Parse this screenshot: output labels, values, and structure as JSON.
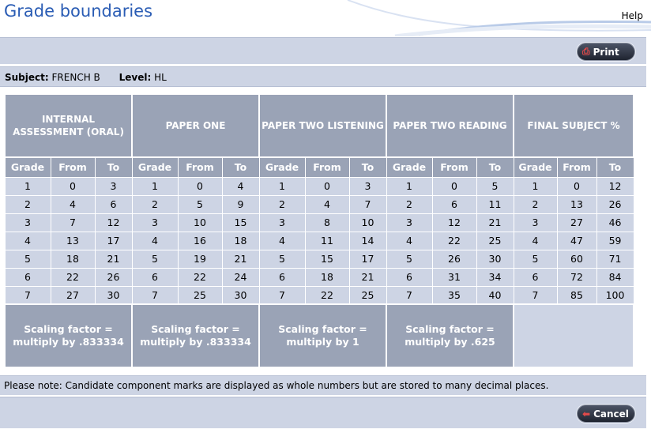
{
  "header": {
    "title": "Grade boundaries",
    "help_label": "Help"
  },
  "toolbar": {
    "print_label": "Print"
  },
  "subject": {
    "subject_label": "Subject:",
    "subject_value": "FRENCH B",
    "level_label": "Level:",
    "level_value": "HL"
  },
  "table": {
    "groups": [
      {
        "title": "INTERNAL ASSESSMENT (ORAL)",
        "scaling": "Scaling factor = multiply by .833334"
      },
      {
        "title": "PAPER ONE",
        "scaling": "Scaling factor = multiply by .833334"
      },
      {
        "title": "PAPER TWO LISTENING",
        "scaling": "Scaling factor = multiply by 1"
      },
      {
        "title": "PAPER TWO READING",
        "scaling": "Scaling factor = multiply by .625"
      },
      {
        "title": "FINAL SUBJECT %",
        "scaling": ""
      }
    ],
    "column_headers": [
      "Grade",
      "From",
      "To"
    ],
    "rows": [
      [
        [
          "1",
          "0",
          "3"
        ],
        [
          "1",
          "0",
          "4"
        ],
        [
          "1",
          "0",
          "3"
        ],
        [
          "1",
          "0",
          "5"
        ],
        [
          "1",
          "0",
          "12"
        ]
      ],
      [
        [
          "2",
          "4",
          "6"
        ],
        [
          "2",
          "5",
          "9"
        ],
        [
          "2",
          "4",
          "7"
        ],
        [
          "2",
          "6",
          "11"
        ],
        [
          "2",
          "13",
          "26"
        ]
      ],
      [
        [
          "3",
          "7",
          "12"
        ],
        [
          "3",
          "10",
          "15"
        ],
        [
          "3",
          "8",
          "10"
        ],
        [
          "3",
          "12",
          "21"
        ],
        [
          "3",
          "27",
          "46"
        ]
      ],
      [
        [
          "4",
          "13",
          "17"
        ],
        [
          "4",
          "16",
          "18"
        ],
        [
          "4",
          "11",
          "14"
        ],
        [
          "4",
          "22",
          "25"
        ],
        [
          "4",
          "47",
          "59"
        ]
      ],
      [
        [
          "5",
          "18",
          "21"
        ],
        [
          "5",
          "19",
          "21"
        ],
        [
          "5",
          "15",
          "17"
        ],
        [
          "5",
          "26",
          "30"
        ],
        [
          "5",
          "60",
          "71"
        ]
      ],
      [
        [
          "6",
          "22",
          "26"
        ],
        [
          "6",
          "22",
          "24"
        ],
        [
          "6",
          "18",
          "21"
        ],
        [
          "6",
          "31",
          "34"
        ],
        [
          "6",
          "72",
          "84"
        ]
      ],
      [
        [
          "7",
          "27",
          "30"
        ],
        [
          "7",
          "25",
          "30"
        ],
        [
          "7",
          "22",
          "25"
        ],
        [
          "7",
          "35",
          "40"
        ],
        [
          "7",
          "85",
          "100"
        ]
      ]
    ]
  },
  "note": "Please note: Candidate component marks are displayed as whole numbers but are stored to many decimal places.",
  "footer": {
    "cancel_label": "Cancel"
  },
  "colors": {
    "title_blue": "#2a5cb4",
    "header_gray": "#9aa3b6",
    "cell_light": "#cdd4e4"
  },
  "icons": {
    "print": "printer-icon",
    "cancel": "back-arrow-icon"
  }
}
